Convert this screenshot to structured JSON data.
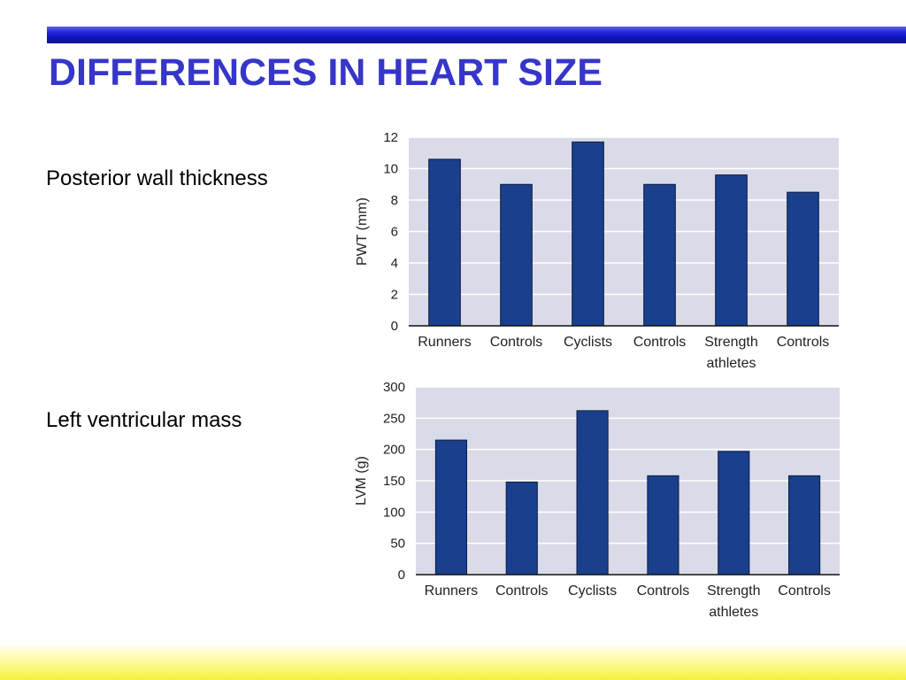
{
  "slide": {
    "title": "DIFFERENCES IN HEART SIZE",
    "labels": [
      "Posterior wall thickness",
      "Left ventricular mass"
    ]
  },
  "colors": {
    "title": "#3636c8",
    "bar_fill": "#1a3f8c",
    "plot_background": "#d9dbe8",
    "top_bar": "#1f26d6",
    "bottom_bar": "#f6f13c"
  },
  "chart_data": [
    {
      "type": "bar",
      "categories": [
        "Runners",
        "Controls",
        "Cyclists",
        "Controls",
        "Strength athletes",
        "Controls"
      ],
      "values": [
        10.6,
        9.0,
        11.7,
        9.0,
        9.6,
        8.5
      ],
      "title": "",
      "xlabel": "",
      "ylabel": "PWT (mm)",
      "ylim": [
        0,
        12
      ],
      "yticks": [
        0,
        2,
        4,
        6,
        8,
        10,
        12
      ],
      "grid": true
    },
    {
      "type": "bar",
      "categories": [
        "Runners",
        "Controls",
        "Cyclists",
        "Controls",
        "Strength athletes",
        "Controls"
      ],
      "values": [
        215,
        148,
        262,
        158,
        197,
        158
      ],
      "title": "",
      "xlabel": "",
      "ylabel": "LVM (g)",
      "ylim": [
        0,
        300
      ],
      "yticks": [
        0,
        50,
        100,
        150,
        200,
        250,
        300
      ],
      "grid": true
    }
  ]
}
